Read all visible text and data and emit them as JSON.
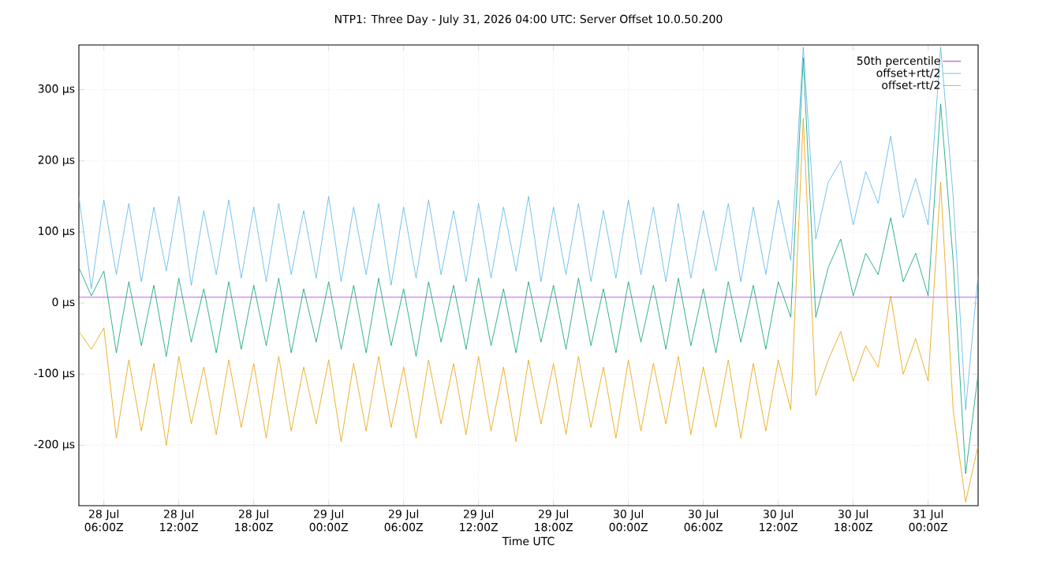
{
  "chart_data": {
    "type": "line",
    "title": "NTP1: Three Day - July 31, 2026 04:00 UTC: Server Offset 10.0.50.200",
    "xlabel": "Time UTC",
    "x": [
      "2026-07-28T04:00",
      "2026-07-28T05:00",
      "2026-07-28T06:00",
      "2026-07-28T07:00",
      "2026-07-28T08:00",
      "2026-07-28T09:00",
      "2026-07-28T10:00",
      "2026-07-28T11:00",
      "2026-07-28T12:00",
      "2026-07-28T13:00",
      "2026-07-28T14:00",
      "2026-07-28T15:00",
      "2026-07-28T16:00",
      "2026-07-28T17:00",
      "2026-07-28T18:00",
      "2026-07-28T19:00",
      "2026-07-28T20:00",
      "2026-07-28T21:00",
      "2026-07-28T22:00",
      "2026-07-28T23:00",
      "2026-07-29T00:00",
      "2026-07-29T01:00",
      "2026-07-29T02:00",
      "2026-07-29T03:00",
      "2026-07-29T04:00",
      "2026-07-29T05:00",
      "2026-07-29T06:00",
      "2026-07-29T07:00",
      "2026-07-29T08:00",
      "2026-07-29T09:00",
      "2026-07-29T10:00",
      "2026-07-29T11:00",
      "2026-07-29T12:00",
      "2026-07-29T13:00",
      "2026-07-29T14:00",
      "2026-07-29T15:00",
      "2026-07-29T16:00",
      "2026-07-29T17:00",
      "2026-07-29T18:00",
      "2026-07-29T19:00",
      "2026-07-29T20:00",
      "2026-07-29T21:00",
      "2026-07-29T22:00",
      "2026-07-29T23:00",
      "2026-07-30T00:00",
      "2026-07-30T01:00",
      "2026-07-30T02:00",
      "2026-07-30T03:00",
      "2026-07-30T04:00",
      "2026-07-30T05:00",
      "2026-07-30T06:00",
      "2026-07-30T07:00",
      "2026-07-30T08:00",
      "2026-07-30T09:00",
      "2026-07-30T10:00",
      "2026-07-30T11:00",
      "2026-07-30T12:00",
      "2026-07-30T13:00",
      "2026-07-30T14:00",
      "2026-07-30T15:00",
      "2026-07-30T16:00",
      "2026-07-30T17:00",
      "2026-07-30T18:00",
      "2026-07-30T19:00",
      "2026-07-30T20:00",
      "2026-07-30T21:00",
      "2026-07-30T22:00",
      "2026-07-30T23:00",
      "2026-07-31T00:00",
      "2026-07-31T01:00",
      "2026-07-31T02:00",
      "2026-07-31T03:00",
      "2026-07-31T04:00"
    ],
    "series": [
      {
        "name": "50th percentile",
        "color": "#9400d3",
        "x": [
          "2026-07-28T04:00",
          "2026-07-31T04:00"
        ],
        "values": [
          8,
          8
        ]
      },
      {
        "color": "#009e73",
        "values": [
          50,
          10,
          45,
          -70,
          30,
          -60,
          25,
          -75,
          35,
          -55,
          20,
          -70,
          30,
          -65,
          25,
          -60,
          35,
          -70,
          20,
          -55,
          30,
          -65,
          25,
          -70,
          35,
          -60,
          20,
          -75,
          30,
          -55,
          25,
          -65,
          35,
          -60,
          20,
          -70,
          30,
          -55,
          25,
          -65,
          35,
          -60,
          20,
          -70,
          30,
          -55,
          25,
          -65,
          35,
          -60,
          20,
          -70,
          30,
          -55,
          25,
          -65,
          30,
          -20,
          345,
          -20,
          50,
          90,
          10,
          70,
          40,
          120,
          30,
          70,
          10,
          280,
          60,
          -240,
          -100
        ]
      },
      {
        "name": "offset+rtt/2",
        "color": "#56b4e9",
        "values": [
          150,
          20,
          145,
          40,
          140,
          30,
          135,
          45,
          150,
          25,
          130,
          40,
          145,
          35,
          135,
          30,
          140,
          40,
          130,
          35,
          150,
          30,
          135,
          40,
          140,
          25,
          135,
          35,
          145,
          40,
          130,
          30,
          140,
          35,
          135,
          45,
          150,
          30,
          135,
          40,
          140,
          30,
          130,
          35,
          145,
          40,
          135,
          30,
          140,
          35,
          130,
          45,
          140,
          30,
          135,
          40,
          145,
          60,
          360,
          90,
          170,
          200,
          110,
          185,
          140,
          235,
          120,
          175,
          110,
          360,
          150,
          -150,
          40
        ]
      },
      {
        "name": "offset-rtt/2",
        "color": "#e69f00",
        "values": [
          -40,
          -65,
          -35,
          -190,
          -80,
          -180,
          -85,
          -200,
          -75,
          -170,
          -90,
          -185,
          -80,
          -175,
          -85,
          -190,
          -75,
          -180,
          -90,
          -170,
          -80,
          -195,
          -85,
          -180,
          -75,
          -175,
          -90,
          -190,
          -80,
          -170,
          -85,
          -185,
          -75,
          -180,
          -90,
          -195,
          -80,
          -170,
          -85,
          -185,
          -75,
          -175,
          -90,
          -190,
          -80,
          -180,
          -85,
          -170,
          -75,
          -185,
          -90,
          -175,
          -80,
          -190,
          -85,
          -180,
          -80,
          -150,
          260,
          -130,
          -80,
          -40,
          -110,
          -60,
          -90,
          10,
          -100,
          -50,
          -110,
          170,
          -150,
          -280,
          -200
        ]
      }
    ],
    "xlim": [
      "2026-07-28T04:00",
      "2026-07-31T04:00"
    ],
    "xticks": [
      {
        "value": "2026-07-28T06:00",
        "label": "28 Jul 06:00Z"
      },
      {
        "value": "2026-07-28T12:00",
        "label": "28 Jul 12:00Z"
      },
      {
        "value": "2026-07-28T18:00",
        "label": "28 Jul 18:00Z"
      },
      {
        "value": "2026-07-29T00:00",
        "label": "29 Jul 00:00Z"
      },
      {
        "value": "2026-07-29T06:00",
        "label": "29 Jul 06:00Z"
      },
      {
        "value": "2026-07-29T12:00",
        "label": "29 Jul 12:00Z"
      },
      {
        "value": "2026-07-29T18:00",
        "label": "29 Jul 18:00Z"
      },
      {
        "value": "2026-07-30T00:00",
        "label": "30 Jul 00:00Z"
      },
      {
        "value": "2026-07-30T06:00",
        "label": "30 Jul 06:00Z"
      },
      {
        "value": "2026-07-30T12:00",
        "label": "30 Jul 12:00Z"
      },
      {
        "value": "2026-07-30T18:00",
        "label": "30 Jul 18:00Z"
      },
      {
        "value": "2026-07-31T00:00",
        "label": "31 Jul 00:00Z"
      }
    ],
    "ylim": [
      -285,
      363
    ],
    "yticks": [
      {
        "value": -200,
        "label": "-200 µs"
      },
      {
        "value": -100,
        "label": "-100 µs"
      },
      {
        "value": 0,
        "label": "0 µs"
      },
      {
        "value": 100,
        "label": "100 µs"
      },
      {
        "value": 200,
        "label": "200 µs"
      },
      {
        "value": 300,
        "label": "300 µs"
      }
    ],
    "grid": true,
    "legend": "top right",
    "marker": "none",
    "line_style": "solid"
  }
}
